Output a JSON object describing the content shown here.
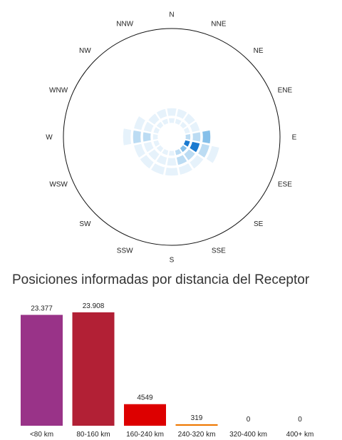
{
  "title": "Posiciones informadas por distancia del Receptor",
  "chart_data": [
    {
      "type": "polar",
      "directions": [
        "N",
        "NNE",
        "NE",
        "ENE",
        "E",
        "ESE",
        "SE",
        "SSE",
        "S",
        "SSW",
        "SW",
        "WSW",
        "W",
        "WNW",
        "NW",
        "NNW"
      ],
      "sectors": [
        {
          "dir": "N",
          "values": [
            0.2,
            0.2,
            0,
            0,
            0,
            0
          ]
        },
        {
          "dir": "NNE",
          "values": [
            0.2,
            0.2,
            0,
            0,
            0,
            0
          ]
        },
        {
          "dir": "NE",
          "values": [
            0.2,
            0.2,
            0,
            0,
            0,
            0
          ]
        },
        {
          "dir": "ENE",
          "values": [
            0.2,
            0.2,
            0,
            0,
            0,
            0
          ]
        },
        {
          "dir": "E",
          "values": [
            0.3,
            0.4,
            0.5,
            0,
            0,
            0
          ]
        },
        {
          "dir": "ESE",
          "values": [
            0.9,
            0.9,
            0.3,
            0.2,
            0,
            0
          ]
        },
        {
          "dir": "SE",
          "values": [
            0.5,
            0.4,
            0.2,
            0,
            0,
            0
          ]
        },
        {
          "dir": "SSE",
          "values": [
            0.3,
            0.3,
            0.2,
            0,
            0,
            0
          ]
        },
        {
          "dir": "S",
          "values": [
            0.2,
            0.2,
            0.2,
            0,
            0,
            0
          ]
        },
        {
          "dir": "SSW",
          "values": [
            0.2,
            0.2,
            0.2,
            0,
            0,
            0
          ]
        },
        {
          "dir": "SW",
          "values": [
            0.2,
            0.2,
            0.2,
            0,
            0,
            0
          ]
        },
        {
          "dir": "WSW",
          "values": [
            0.2,
            0.2,
            0.2,
            0,
            0,
            0
          ]
        },
        {
          "dir": "W",
          "values": [
            0.2,
            0.3,
            0.4,
            0.2,
            0,
            0
          ]
        },
        {
          "dir": "WNW",
          "values": [
            0.2,
            0.2,
            0.2,
            0,
            0,
            0
          ]
        },
        {
          "dir": "NW",
          "values": [
            0.2,
            0.2,
            0,
            0,
            0,
            0
          ]
        },
        {
          "dir": "NNW",
          "values": [
            0.2,
            0.2,
            0,
            0,
            0,
            0
          ]
        }
      ],
      "colors": {
        "low": "#e6f2fb",
        "mid": "#bcdcf3",
        "high": "#86c0ea",
        "max": "#1a7ad0"
      }
    },
    {
      "type": "bar",
      "categories": [
        "<80 km",
        "80-160 km",
        "160-240 km",
        "240-320 km",
        "320-400 km",
        "400+ km"
      ],
      "values": [
        23377,
        23908,
        4549,
        319,
        0,
        0
      ],
      "labels": [
        "23.377",
        "23.908",
        "4549",
        "319",
        "0",
        "0"
      ],
      "colors": [
        "#993388",
        "#b22035",
        "#dd0000",
        "#ee7700",
        "#aaaaaa",
        "#aaaaaa"
      ]
    }
  ]
}
